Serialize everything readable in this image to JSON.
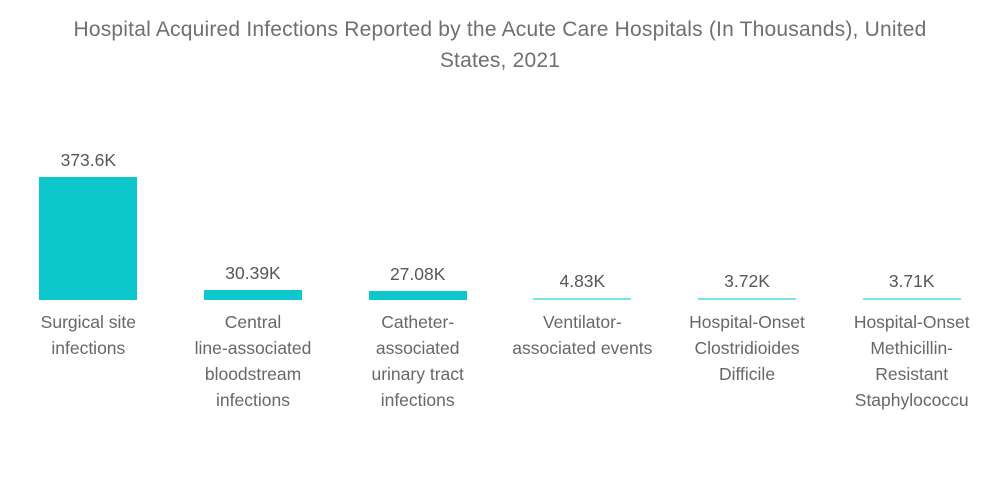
{
  "header": {
    "title_display": "Hospital Acquired Infections Reported by the Acute Care Hospitals (In Thousands), United\nStates, 2021"
  },
  "chart_data": {
    "type": "bar",
    "title": "Hospital Acquired Infections Reported by the Acute Care Hospitals (In Thousands), United States, 2021",
    "categories": [
      "Surgical site infections",
      "Central line-associated bloodstream infections",
      "Catheter-associated urinary tract infections",
      "Ventilator-associated events",
      "Hospital-Onset Clostridioides Difficile",
      "Hospital-Onset Methicillin-Resistant Staphylococcu"
    ],
    "category_display": [
      "Surgical site\ninfections",
      "Central\nline-associated\nbloodstream\ninfections",
      "Catheter-\nassociated\nurinary tract\ninfections",
      "Ventilator-\nassociated events",
      "Hospital-Onset\nClostridioides\nDifficile",
      "Hospital-Onset\nMethicillin-\nResistant\nStaphylococcu"
    ],
    "values": [
      373.6,
      30.39,
      27.08,
      4.83,
      3.72,
      3.71
    ],
    "value_labels": [
      "373.6K",
      "30.39K",
      "27.08K",
      "4.83K",
      "3.72K",
      "3.71K"
    ],
    "unit": "thousands",
    "ylim": [
      0,
      373.6
    ],
    "xlabel": "",
    "ylabel": "",
    "grid": false,
    "legend": false,
    "bar_color": "#0cc8cd",
    "title_color": "#6c7073",
    "value_label_color": "#54575a",
    "category_label_color": "#64686b",
    "background_color": "#ffffff"
  }
}
